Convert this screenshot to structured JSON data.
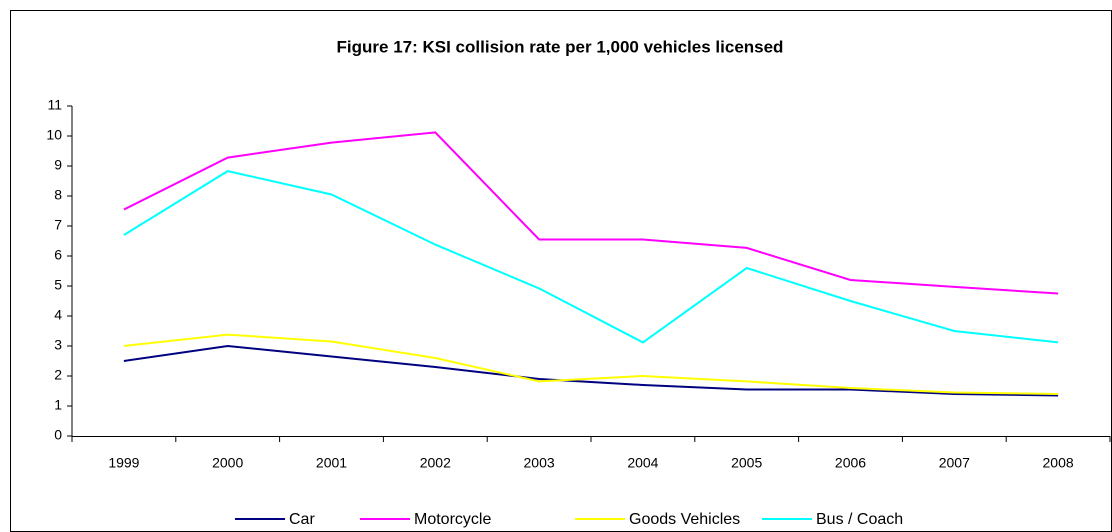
{
  "chart_data": {
    "type": "line",
    "title": "Figure 17: KSI collision rate per 1,000 vehicles licensed",
    "categories": [
      "1999",
      "2000",
      "2001",
      "2002",
      "2003",
      "2004",
      "2005",
      "2006",
      "2007",
      "2008"
    ],
    "series": [
      {
        "name": "Car",
        "color": "#000080",
        "values": [
          2.5,
          3.0,
          2.65,
          2.3,
          1.9,
          1.7,
          1.55,
          1.55,
          1.4,
          1.35
        ]
      },
      {
        "name": "Motorcycle",
        "color": "#ff00ff",
        "values": [
          7.55,
          9.28,
          9.78,
          10.12,
          6.55,
          6.55,
          6.27,
          5.2,
          4.97,
          4.75
        ]
      },
      {
        "name": "Goods Vehicles",
        "color": "#ffff00",
        "values": [
          3.0,
          3.38,
          3.15,
          2.6,
          1.82,
          2.0,
          1.82,
          1.6,
          1.45,
          1.4
        ]
      },
      {
        "name": "Bus / Coach",
        "color": "#00ffff",
        "values": [
          6.7,
          8.83,
          8.05,
          6.38,
          4.92,
          3.12,
          5.6,
          4.5,
          3.5,
          3.12
        ]
      }
    ],
    "ylim": [
      0,
      11
    ],
    "yticks": [
      0,
      1,
      2,
      3,
      4,
      5,
      6,
      7,
      8,
      9,
      10,
      11
    ],
    "legend": "bottom"
  }
}
